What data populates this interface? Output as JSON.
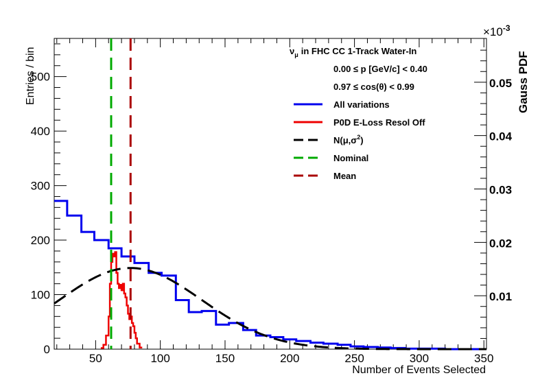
{
  "chart_data": {
    "type": "histogram",
    "title": "νμ in FHC CC 1-Track Water-In",
    "title_main": "in FHC CC 1-Track Water-In",
    "title_nu": "ν",
    "title_mu": "μ",
    "cut_lines": [
      "0.00 ≤ p [GeV/c] < 0.40",
      "0.97 ≤ cos(θ) < 0.99"
    ],
    "xlabel": "Number of Events Selected",
    "ylabel": "Entries / bin",
    "y2label": "Gauss PDF",
    "y2_multiplier": "×10",
    "y2_exponent": "-3",
    "xlim": [
      18,
      352
    ],
    "ylim": [
      0,
      570
    ],
    "y2lim": [
      0,
      0.0582
    ],
    "x_ticks": [
      50,
      100,
      150,
      200,
      250,
      300,
      350
    ],
    "x_tick_labels": [
      "50",
      "100",
      "150",
      "200",
      "250",
      "300",
      "350"
    ],
    "y_ticks": [
      0,
      100,
      200,
      300,
      400,
      500
    ],
    "y_tick_labels": [
      "0",
      "100",
      "200",
      "300",
      "400",
      "500"
    ],
    "y2_ticks": [
      0.01,
      0.02,
      0.03,
      0.04,
      0.05
    ],
    "y2_tick_labels": [
      "0.01",
      "0.02",
      "0.03",
      "0.04",
      "0.05"
    ],
    "legend": [
      {
        "label": "All variations",
        "color": "#0000ee",
        "style": "solid"
      },
      {
        "label": "P0D E-Loss Resol Off",
        "color": "#ee0000",
        "style": "solid"
      },
      {
        "label": "N(μ,σ²)",
        "label_main": "N(μ,σ",
        "label_sup": "2",
        "label_end": ")",
        "color": "#000000",
        "style": "dashed"
      },
      {
        "label": "Nominal",
        "color": "#00aa00",
        "style": "dashed"
      },
      {
        "label": "Mean",
        "color": "#aa0000",
        "style": "dashed"
      }
    ],
    "series": [
      {
        "name": "All variations",
        "type": "step-histogram",
        "color": "#0000ee",
        "bin_edges": [
          18,
          28,
          39,
          49,
          60,
          70,
          80,
          91,
          101,
          112,
          122,
          132,
          143,
          153,
          164,
          174,
          185,
          195,
          205,
          216,
          226,
          237,
          247,
          257,
          268,
          278,
          289,
          299,
          309,
          320,
          330,
          341,
          352
        ],
        "values": [
          272,
          245,
          215,
          200,
          185,
          170,
          158,
          140,
          135,
          90,
          68,
          70,
          45,
          48,
          35,
          25,
          22,
          18,
          15,
          12,
          10,
          8,
          5,
          4,
          3,
          2,
          1,
          1,
          1,
          0,
          0,
          0
        ]
      },
      {
        "name": "P0D E-Loss Resol Off",
        "type": "step-histogram",
        "color": "#ee0000",
        "bin_edges": [
          54,
          56,
          58,
          60,
          61,
          62,
          63,
          64,
          65,
          66,
          67,
          68,
          69,
          70,
          71,
          72,
          73,
          74,
          75,
          76,
          77,
          78,
          79,
          80,
          81,
          82,
          84,
          86
        ],
        "values": [
          2,
          8,
          25,
          60,
          120,
          160,
          175,
          170,
          178,
          140,
          120,
          112,
          118,
          108,
          120,
          102,
          95,
          80,
          65,
          55,
          60,
          48,
          42,
          30,
          20,
          10,
          3
        ]
      },
      {
        "name": "N(μ,σ²)",
        "type": "gaussian",
        "color": "#000000",
        "mean": 77,
        "sigma": 55,
        "peak": 0.0152
      }
    ],
    "vlines": [
      {
        "name": "Nominal",
        "x": 62,
        "color": "#00aa00"
      },
      {
        "name": "Mean",
        "x": 77,
        "color": "#aa0000"
      }
    ]
  }
}
